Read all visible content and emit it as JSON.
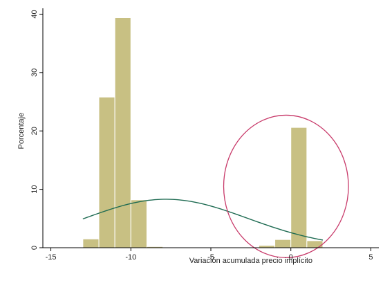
{
  "chart_data": {
    "type": "bar",
    "subtype": "histogram",
    "xlabel": "Variación acumulada precio implícito",
    "ylabel": "Porcentaje",
    "xlim": [
      -15.5,
      5.5
    ],
    "ylim": [
      0,
      41
    ],
    "xticks": [
      -15,
      -10,
      -5,
      0,
      5
    ],
    "yticks": [
      0,
      10,
      20,
      30,
      40
    ],
    "grid": false,
    "legend": "none",
    "bar_color": "#c8c083",
    "bar_edge_color": "#ffffff",
    "curve_color": "#1e6b52",
    "ellipse_color": "#c83a6a",
    "bins": [
      {
        "x0": -13.0,
        "x1": -12.0,
        "value": 1.5
      },
      {
        "x0": -12.0,
        "x1": -11.0,
        "value": 25.8
      },
      {
        "x0": -11.0,
        "x1": -10.0,
        "value": 39.4
      },
      {
        "x0": -10.0,
        "x1": -9.0,
        "value": 8.2
      },
      {
        "x0": -9.0,
        "x1": -8.0,
        "value": 0.2
      },
      {
        "x0": -2.0,
        "x1": -1.0,
        "value": 0.4
      },
      {
        "x0": -1.0,
        "x1": 0.0,
        "value": 1.4
      },
      {
        "x0": 0.0,
        "x1": 1.0,
        "value": 20.6
      },
      {
        "x0": 1.0,
        "x1": 2.0,
        "value": 1.2
      }
    ],
    "normal_curve": {
      "mean": -7.8,
      "sd": 5.1,
      "peak": 8.3,
      "x_range": [
        -13.0,
        2.0
      ]
    },
    "annotation_ellipse": {
      "cx": -0.3,
      "cy": 10.5,
      "rx": 3.9,
      "ry": 12.2
    }
  }
}
